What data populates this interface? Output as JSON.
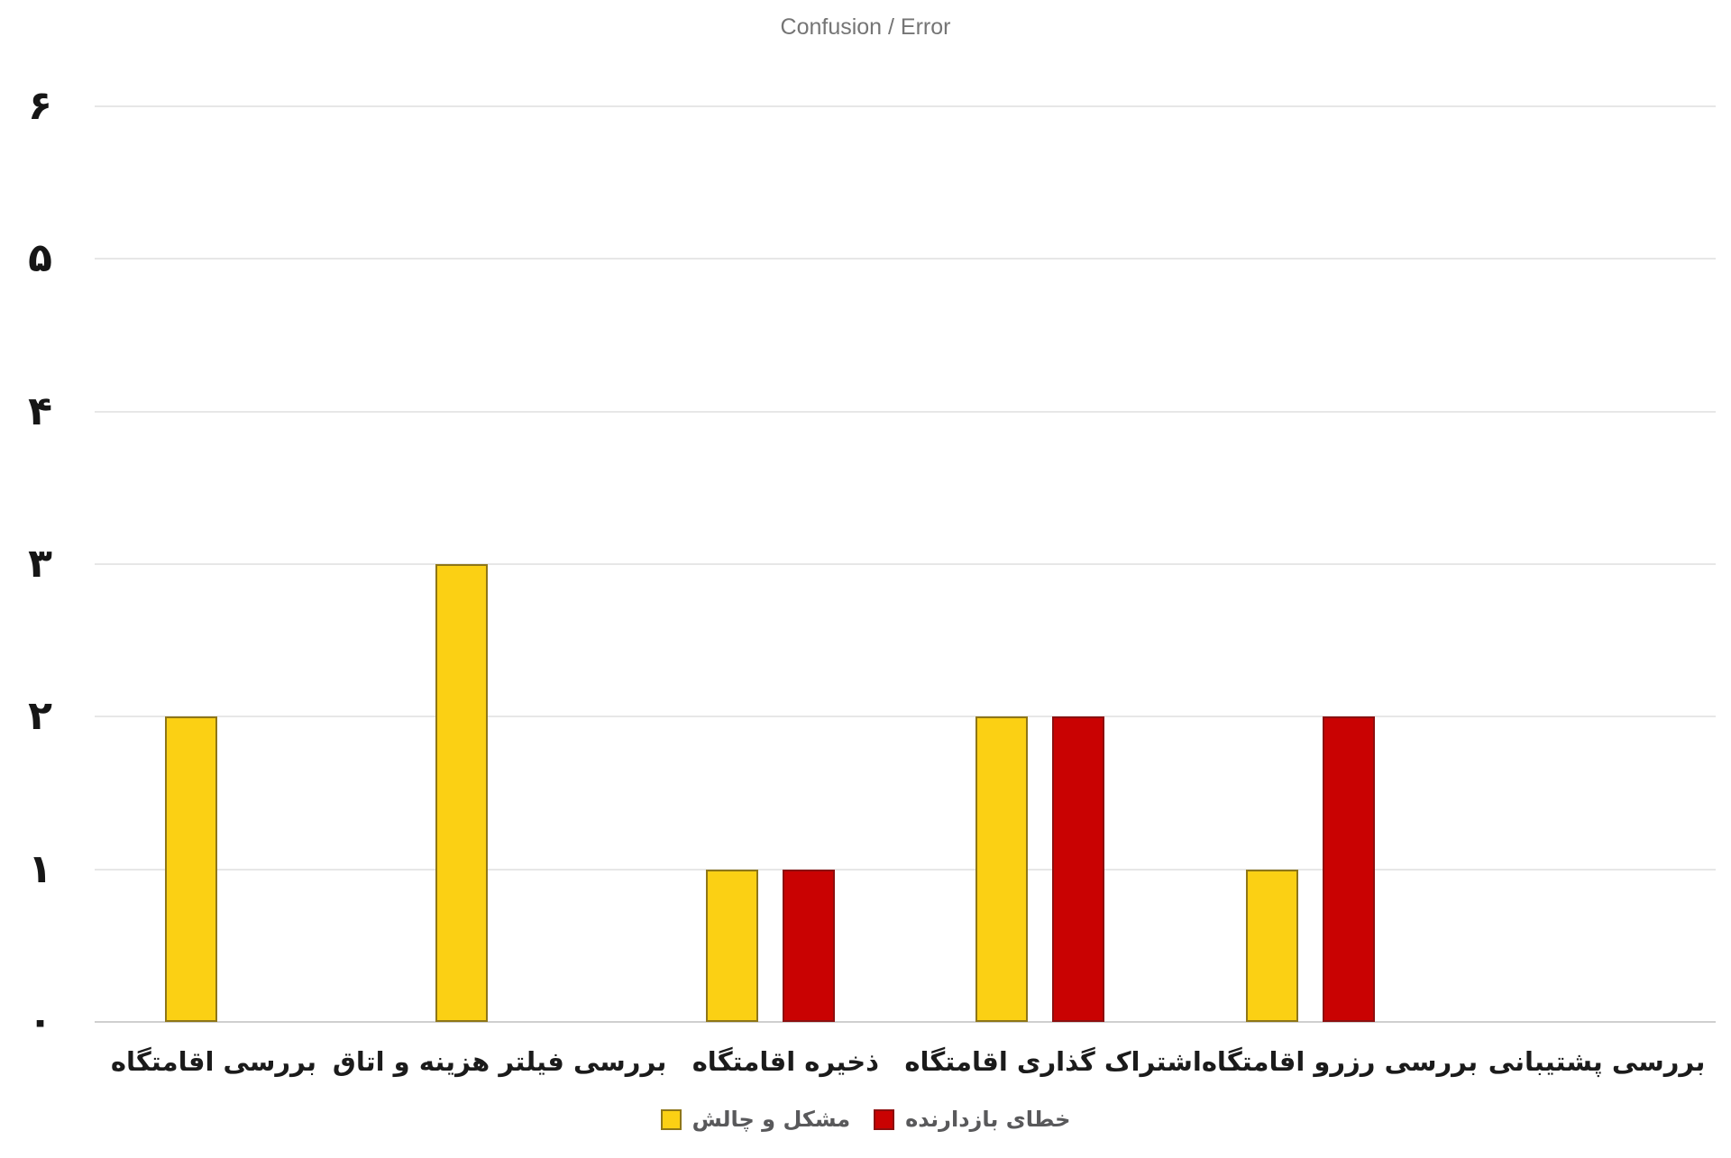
{
  "colors": {
    "bar_yellow": "#FBD014",
    "bar_yellow_border": "#8E7618",
    "bar_red": "#C90202",
    "bar_red_border": "#8C0F0F",
    "gridline": "#E7E7E7",
    "baseline": "#CFCFCF",
    "title_text": "#757575",
    "axis_number_text": "#161616",
    "category_label_text": "#1B1B1B",
    "legend_text": "#59595B"
  },
  "chart_data": {
    "type": "bar",
    "title": "Confusion / Error",
    "rtl": true,
    "grid": true,
    "legend_position": "bottom",
    "categories": [
      "بررسی اقامتگاه",
      "بررسی فیلتر هزینه و اتاق",
      "ذخیره اقامتگاه",
      "اشتراک گذاری اقامتگاه",
      "بررسی رزرو اقامتگاه",
      "بررسی پشتیبانی"
    ],
    "series": [
      {
        "name": "مشکل و چالش",
        "color": "#FBD014",
        "border": "#8E7618",
        "values": [
          2,
          3,
          1,
          2,
          1,
          0
        ]
      },
      {
        "name": "خطای بازدارنده",
        "color": "#C90202",
        "border": "#8C0F0F",
        "values": [
          0,
          0,
          1,
          2,
          2,
          0
        ]
      }
    ],
    "y_axis": {
      "min": 0,
      "max": 6,
      "step": 1,
      "tick_labels": [
        "۰",
        "۱",
        "۲",
        "۳",
        "۴",
        "۵",
        "۶"
      ]
    }
  }
}
